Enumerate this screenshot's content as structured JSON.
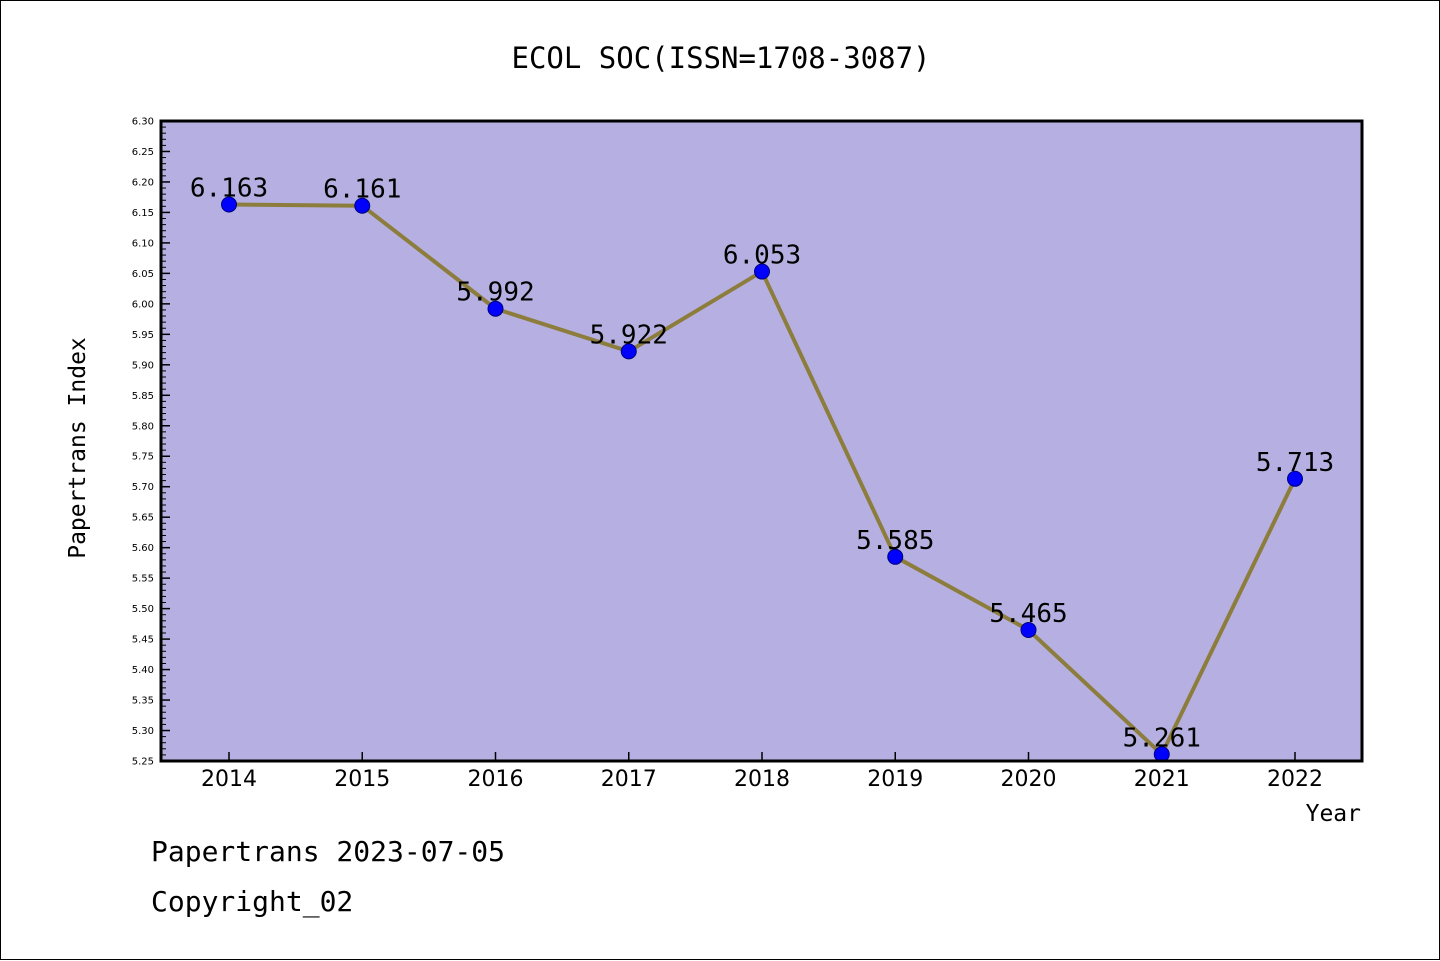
{
  "chart_data": {
    "type": "line",
    "title": "ECOL SOC(ISSN=1708-3087)",
    "xlabel": "Year",
    "ylabel": "Papertrans Index",
    "categories": [
      "2014",
      "2015",
      "2016",
      "2017",
      "2018",
      "2019",
      "2020",
      "2021",
      "2022"
    ],
    "series": [
      {
        "values": [
          6.163,
          6.161,
          5.992,
          5.922,
          6.053,
          5.585,
          5.465,
          5.261,
          5.713
        ],
        "labels": [
          "6.163",
          "6.161",
          "5.992",
          "5.922",
          "6.053",
          "5.585",
          "5.465",
          "5.261",
          "5.713"
        ]
      }
    ],
    "ylim": [
      5.25,
      6.3
    ],
    "yticks": [
      "5.25",
      "5.30",
      "5.35",
      "5.40",
      "5.45",
      "5.50",
      "5.55",
      "5.60",
      "5.65",
      "5.70",
      "5.75",
      "5.80",
      "5.85",
      "5.90",
      "5.95",
      "6.00",
      "6.05",
      "6.10",
      "6.15",
      "6.20",
      "6.25",
      "6.30"
    ],
    "grid": false,
    "legend": "none",
    "colors": {
      "plot_background": "#b5b0e1",
      "line": "#8c7d3c",
      "marker": "#0000ff"
    }
  },
  "footer": {
    "line1": "Papertrans 2023-07-05",
    "line2": "Copyright_02"
  }
}
